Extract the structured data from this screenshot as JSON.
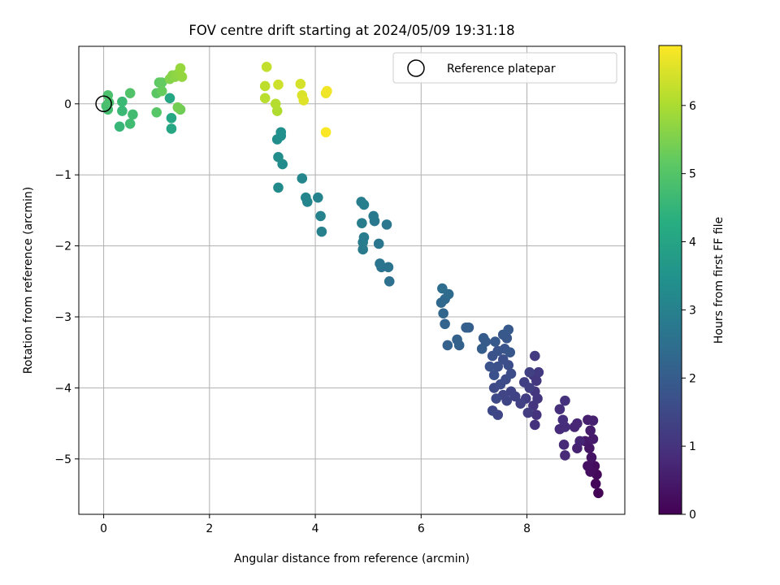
{
  "chart_data": {
    "type": "scatter",
    "title": "FOV centre drift starting at 2024/05/09 19:31:18",
    "xlabel": "Angular distance from reference (arcmin)",
    "ylabel": "Rotation from reference (arcmin)",
    "xlim": [
      -0.47,
      9.85
    ],
    "ylim": [
      -5.78,
      0.81
    ],
    "xticks": [
      0,
      2,
      4,
      6,
      8
    ],
    "yticks": [
      -5,
      -4,
      -3,
      -2,
      -1,
      0
    ],
    "grid": true,
    "legend": {
      "position": "top-right",
      "entries": [
        "Reference platepar"
      ]
    },
    "reference_point": {
      "x": 0,
      "y": 0,
      "marker": "hollow-circle"
    },
    "colorbar": {
      "label": "Hours from first FF file",
      "colormap": "viridis",
      "range": [
        0,
        6.88
      ],
      "ticks": [
        0,
        1,
        2,
        3,
        4,
        5,
        6
      ]
    },
    "points": [
      {
        "x": 9.35,
        "y": -5.48,
        "h": 0.05
      },
      {
        "x": 9.3,
        "y": -5.35,
        "h": 0.1
      },
      {
        "x": 9.32,
        "y": -5.22,
        "h": 0.15
      },
      {
        "x": 9.28,
        "y": -5.1,
        "h": 0.2
      },
      {
        "x": 9.2,
        "y": -5.18,
        "h": 0.25
      },
      {
        "x": 9.15,
        "y": -5.1,
        "h": 0.3
      },
      {
        "x": 9.22,
        "y": -4.98,
        "h": 0.35
      },
      {
        "x": 9.18,
        "y": -4.85,
        "h": 0.4
      },
      {
        "x": 9.1,
        "y": -4.75,
        "h": 0.45
      },
      {
        "x": 9.25,
        "y": -4.72,
        "h": 0.5
      },
      {
        "x": 9.2,
        "y": -4.6,
        "h": 0.55
      },
      {
        "x": 9.15,
        "y": -4.45,
        "h": 0.6
      },
      {
        "x": 9.25,
        "y": -4.46,
        "h": 0.62
      },
      {
        "x": 8.95,
        "y": -4.85,
        "h": 0.65
      },
      {
        "x": 9.0,
        "y": -4.75,
        "h": 0.7
      },
      {
        "x": 8.9,
        "y": -4.55,
        "h": 0.72
      },
      {
        "x": 8.95,
        "y": -4.5,
        "h": 0.75
      },
      {
        "x": 8.72,
        "y": -4.95,
        "h": 0.8
      },
      {
        "x": 8.7,
        "y": -4.8,
        "h": 0.82
      },
      {
        "x": 8.62,
        "y": -4.58,
        "h": 0.85
      },
      {
        "x": 8.72,
        "y": -4.55,
        "h": 0.88
      },
      {
        "x": 8.68,
        "y": -4.45,
        "h": 0.9
      },
      {
        "x": 8.62,
        "y": -4.3,
        "h": 0.92
      },
      {
        "x": 8.72,
        "y": -4.18,
        "h": 0.95
      },
      {
        "x": 8.15,
        "y": -4.52,
        "h": 0.98
      },
      {
        "x": 8.18,
        "y": -4.38,
        "h": 1.0
      },
      {
        "x": 8.12,
        "y": -4.25,
        "h": 1.02
      },
      {
        "x": 8.2,
        "y": -4.15,
        "h": 1.05
      },
      {
        "x": 8.15,
        "y": -4.05,
        "h": 1.08
      },
      {
        "x": 8.18,
        "y": -3.9,
        "h": 1.1
      },
      {
        "x": 8.12,
        "y": -3.82,
        "h": 1.12
      },
      {
        "x": 8.22,
        "y": -3.78,
        "h": 1.15
      },
      {
        "x": 8.15,
        "y": -3.55,
        "h": 1.18
      },
      {
        "x": 8.02,
        "y": -4.35,
        "h": 1.2
      },
      {
        "x": 7.98,
        "y": -4.15,
        "h": 1.22
      },
      {
        "x": 8.05,
        "y": -4.0,
        "h": 1.25
      },
      {
        "x": 7.95,
        "y": -3.92,
        "h": 1.28
      },
      {
        "x": 8.05,
        "y": -3.78,
        "h": 1.3
      },
      {
        "x": 7.88,
        "y": -4.22,
        "h": 1.32
      },
      {
        "x": 7.78,
        "y": -4.12,
        "h": 1.35
      },
      {
        "x": 7.7,
        "y": -4.05,
        "h": 1.38
      },
      {
        "x": 7.62,
        "y": -4.18,
        "h": 1.4
      },
      {
        "x": 7.55,
        "y": -4.1,
        "h": 1.42
      },
      {
        "x": 7.45,
        "y": -4.38,
        "h": 1.45
      },
      {
        "x": 7.35,
        "y": -4.32,
        "h": 1.48
      },
      {
        "x": 7.42,
        "y": -4.15,
        "h": 1.5
      },
      {
        "x": 7.38,
        "y": -4.0,
        "h": 1.52
      },
      {
        "x": 7.5,
        "y": -3.95,
        "h": 1.55
      },
      {
        "x": 7.6,
        "y": -3.88,
        "h": 1.58
      },
      {
        "x": 7.7,
        "y": -3.8,
        "h": 1.6
      },
      {
        "x": 7.65,
        "y": -3.68,
        "h": 1.62
      },
      {
        "x": 7.55,
        "y": -3.6,
        "h": 1.65
      },
      {
        "x": 7.45,
        "y": -3.7,
        "h": 1.68
      },
      {
        "x": 7.38,
        "y": -3.82,
        "h": 1.7
      },
      {
        "x": 7.3,
        "y": -3.7,
        "h": 1.72
      },
      {
        "x": 7.35,
        "y": -3.55,
        "h": 1.75
      },
      {
        "x": 7.45,
        "y": -3.48,
        "h": 1.78
      },
      {
        "x": 7.58,
        "y": -3.45,
        "h": 1.8
      },
      {
        "x": 7.68,
        "y": -3.5,
        "h": 1.82
      },
      {
        "x": 7.62,
        "y": -3.3,
        "h": 1.85
      },
      {
        "x": 7.55,
        "y": -3.25,
        "h": 1.88
      },
      {
        "x": 7.65,
        "y": -3.18,
        "h": 1.9
      },
      {
        "x": 7.4,
        "y": -3.35,
        "h": 1.92
      },
      {
        "x": 7.22,
        "y": -3.35,
        "h": 1.95
      },
      {
        "x": 7.15,
        "y": -3.45,
        "h": 1.98
      },
      {
        "x": 7.18,
        "y": -3.3,
        "h": 2.0
      },
      {
        "x": 6.9,
        "y": -3.15,
        "h": 2.05
      },
      {
        "x": 6.85,
        "y": -3.15,
        "h": 2.08
      },
      {
        "x": 6.72,
        "y": -3.4,
        "h": 2.1
      },
      {
        "x": 6.68,
        "y": -3.32,
        "h": 2.12
      },
      {
        "x": 6.5,
        "y": -3.4,
        "h": 2.15
      },
      {
        "x": 6.45,
        "y": -3.1,
        "h": 2.2
      },
      {
        "x": 6.42,
        "y": -2.95,
        "h": 2.25
      },
      {
        "x": 6.38,
        "y": -2.8,
        "h": 2.3
      },
      {
        "x": 6.45,
        "y": -2.75,
        "h": 2.35
      },
      {
        "x": 6.52,
        "y": -2.68,
        "h": 2.4
      },
      {
        "x": 6.4,
        "y": -2.6,
        "h": 2.45
      },
      {
        "x": 5.4,
        "y": -2.5,
        "h": 2.55
      },
      {
        "x": 5.38,
        "y": -2.3,
        "h": 2.6
      },
      {
        "x": 5.25,
        "y": -2.3,
        "h": 2.62
      },
      {
        "x": 5.22,
        "y": -2.25,
        "h": 2.65
      },
      {
        "x": 5.2,
        "y": -1.97,
        "h": 2.7
      },
      {
        "x": 5.35,
        "y": -1.7,
        "h": 2.72
      },
      {
        "x": 5.12,
        "y": -1.65,
        "h": 2.75
      },
      {
        "x": 5.1,
        "y": -1.58,
        "h": 2.78
      },
      {
        "x": 4.9,
        "y": -2.05,
        "h": 2.8
      },
      {
        "x": 4.9,
        "y": -1.95,
        "h": 2.82
      },
      {
        "x": 4.92,
        "y": -1.88,
        "h": 2.85
      },
      {
        "x": 4.88,
        "y": -1.68,
        "h": 2.88
      },
      {
        "x": 4.92,
        "y": -1.42,
        "h": 2.9
      },
      {
        "x": 4.87,
        "y": -1.38,
        "h": 2.92
      },
      {
        "x": 4.12,
        "y": -1.8,
        "h": 3.0
      },
      {
        "x": 4.1,
        "y": -1.58,
        "h": 3.02
      },
      {
        "x": 4.05,
        "y": -1.32,
        "h": 3.05
      },
      {
        "x": 3.85,
        "y": -1.38,
        "h": 3.1
      },
      {
        "x": 3.82,
        "y": -1.32,
        "h": 3.12
      },
      {
        "x": 3.75,
        "y": -1.05,
        "h": 3.15
      },
      {
        "x": 3.3,
        "y": -1.18,
        "h": 3.25
      },
      {
        "x": 3.38,
        "y": -0.85,
        "h": 3.28
      },
      {
        "x": 3.3,
        "y": -0.75,
        "h": 3.32
      },
      {
        "x": 3.28,
        "y": -0.5,
        "h": 3.35
      },
      {
        "x": 3.35,
        "y": -0.45,
        "h": 3.38
      },
      {
        "x": 3.35,
        "y": -0.4,
        "h": 3.4
      },
      {
        "x": 1.28,
        "y": -0.35,
        "h": 4.05
      },
      {
        "x": 1.28,
        "y": -0.2,
        "h": 4.08
      },
      {
        "x": 1.25,
        "y": 0.08,
        "h": 4.1
      },
      {
        "x": 0.3,
        "y": -0.32,
        "h": 4.55
      },
      {
        "x": 0.35,
        "y": -0.1,
        "h": 4.6
      },
      {
        "x": 0.35,
        "y": 0.03,
        "h": 4.62
      },
      {
        "x": 0.5,
        "y": -0.28,
        "h": 4.7
      },
      {
        "x": 0.55,
        "y": -0.15,
        "h": 4.72
      },
      {
        "x": 0.08,
        "y": -0.08,
        "h": 4.75
      },
      {
        "x": 0.05,
        "y": -0.03,
        "h": 4.8
      },
      {
        "x": 0.1,
        "y": 0.02,
        "h": 4.85
      },
      {
        "x": 0.08,
        "y": 0.12,
        "h": 4.88
      },
      {
        "x": 0.5,
        "y": 0.15,
        "h": 4.95
      },
      {
        "x": 1.0,
        "y": -0.12,
        "h": 5.05
      },
      {
        "x": 1.0,
        "y": 0.15,
        "h": 5.1
      },
      {
        "x": 1.05,
        "y": 0.3,
        "h": 5.15
      },
      {
        "x": 1.1,
        "y": 0.3,
        "h": 5.2
      },
      {
        "x": 1.1,
        "y": 0.18,
        "h": 5.25
      },
      {
        "x": 1.45,
        "y": -0.08,
        "h": 5.35
      },
      {
        "x": 1.4,
        "y": -0.05,
        "h": 5.4
      },
      {
        "x": 1.25,
        "y": 0.35,
        "h": 5.55
      },
      {
        "x": 1.3,
        "y": 0.4,
        "h": 5.6
      },
      {
        "x": 1.35,
        "y": 0.38,
        "h": 5.65
      },
      {
        "x": 1.4,
        "y": 0.42,
        "h": 5.7
      },
      {
        "x": 1.48,
        "y": 0.38,
        "h": 5.75
      },
      {
        "x": 1.45,
        "y": 0.5,
        "h": 5.78
      },
      {
        "x": 3.28,
        "y": -0.1,
        "h": 6.05
      },
      {
        "x": 3.25,
        "y": 0.0,
        "h": 6.1
      },
      {
        "x": 3.05,
        "y": 0.08,
        "h": 6.15
      },
      {
        "x": 3.05,
        "y": 0.25,
        "h": 6.2
      },
      {
        "x": 3.08,
        "y": 0.52,
        "h": 6.25
      },
      {
        "x": 3.3,
        "y": 0.27,
        "h": 6.35
      },
      {
        "x": 3.72,
        "y": 0.28,
        "h": 6.45
      },
      {
        "x": 3.75,
        "y": 0.12,
        "h": 6.5
      },
      {
        "x": 3.78,
        "y": 0.05,
        "h": 6.55
      },
      {
        "x": 4.2,
        "y": 0.15,
        "h": 6.7
      },
      {
        "x": 4.22,
        "y": 0.18,
        "h": 6.75
      },
      {
        "x": 4.2,
        "y": -0.4,
        "h": 6.85
      }
    ]
  }
}
